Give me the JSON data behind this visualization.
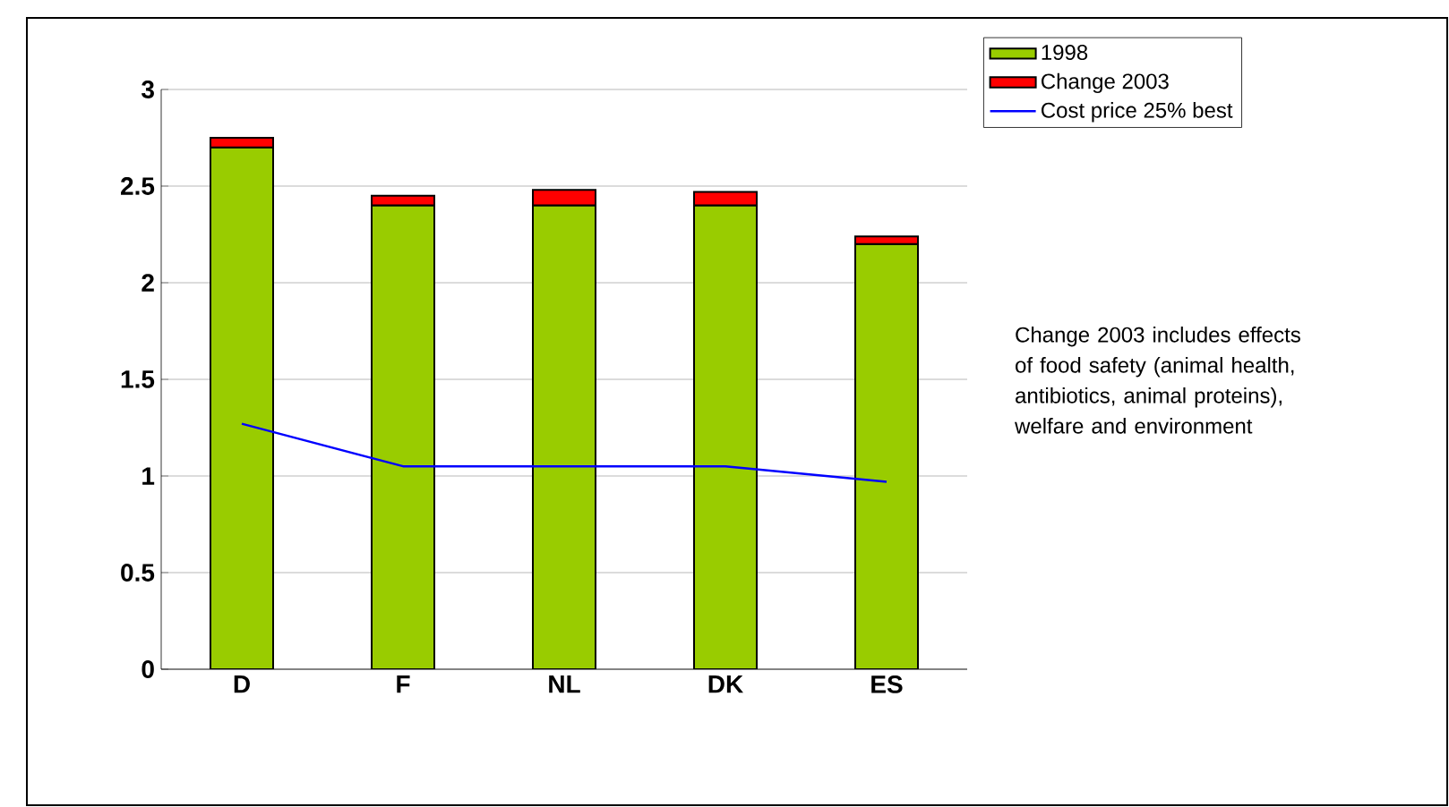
{
  "chart_data": {
    "type": "bar",
    "stacked": true,
    "categories": [
      "D",
      "F",
      "NL",
      "DK",
      "ES"
    ],
    "series": [
      {
        "name": "1998",
        "color": "#99cc00",
        "values": [
          2.7,
          2.4,
          2.4,
          2.4,
          2.2
        ]
      },
      {
        "name": "Change 2003",
        "color": "#ff0000",
        "values": [
          0.05,
          0.05,
          0.08,
          0.07,
          0.04
        ]
      },
      {
        "name": "Cost price 25% best",
        "type": "line",
        "color": "#0000ff",
        "values": [
          1.27,
          1.05,
          1.05,
          1.05,
          0.97
        ]
      }
    ],
    "ylim": [
      0,
      3
    ],
    "yticks": [
      0,
      0.5,
      1,
      1.5,
      2,
      2.5,
      3
    ],
    "grid": "y",
    "legend": "top right",
    "annotations": [
      "Change 2003 includes effects of food safety (animal health, antibiotics, animal proteins), welfare and environment"
    ]
  }
}
